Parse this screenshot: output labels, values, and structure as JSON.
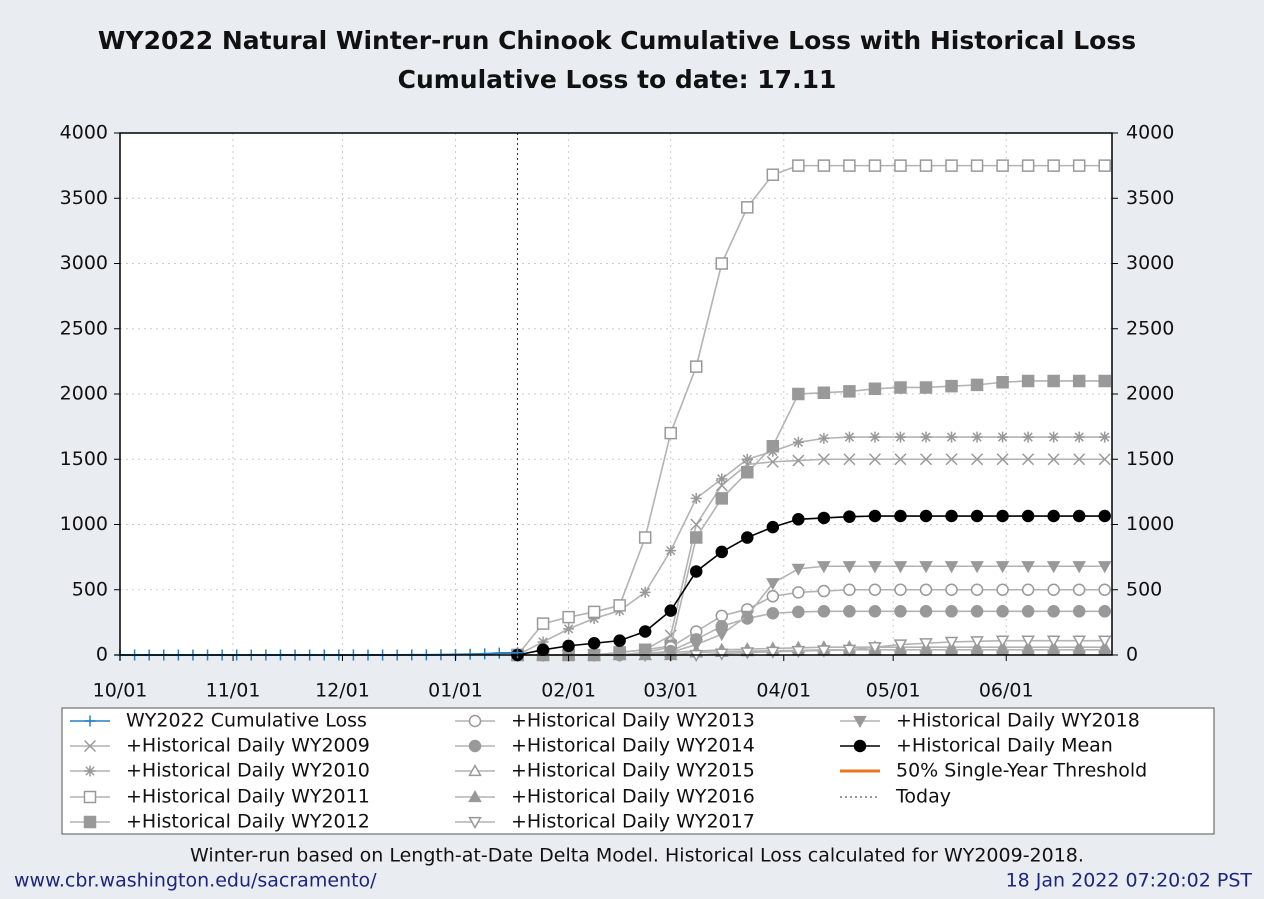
{
  "chart_data": {
    "type": "line",
    "title": "WY2022 Natural Winter-run Chinook Cumulative Loss with Historical Loss",
    "subtitle": "Cumulative Loss to date: 17.11",
    "xlim": [
      "10/01",
      "06/30"
    ],
    "xticks": [
      "10/01",
      "11/01",
      "12/01",
      "01/01",
      "02/01",
      "03/01",
      "04/01",
      "05/01",
      "06/01"
    ],
    "ylim": [
      0,
      4000
    ],
    "yticks": [
      0,
      500,
      1000,
      1500,
      2000,
      2500,
      3000,
      3500,
      4000
    ],
    "grid": true,
    "x": [
      "01/18",
      "01/25",
      "02/01",
      "02/08",
      "02/15",
      "02/22",
      "03/01",
      "03/08",
      "03/15",
      "03/22",
      "03/29",
      "04/05",
      "04/12",
      "04/19",
      "04/26",
      "05/03",
      "05/10",
      "05/17",
      "05/24",
      "05/31",
      "06/07",
      "06/14",
      "06/21",
      "06/28"
    ],
    "today_line": {
      "name": "Today",
      "x": "01/18"
    },
    "series": [
      {
        "name": "WY2022 Cumulative Loss",
        "color": "#2a7fc0",
        "marker": "plus",
        "x": [
          "10/01",
          "10/05",
          "10/09",
          "10/13",
          "10/17",
          "10/21",
          "10/25",
          "10/29",
          "11/02",
          "11/06",
          "11/10",
          "11/14",
          "11/18",
          "11/22",
          "11/26",
          "11/30",
          "12/04",
          "12/08",
          "12/12",
          "12/16",
          "12/20",
          "12/24",
          "12/28",
          "01/01",
          "01/05",
          "01/09",
          "01/13",
          "01/18"
        ],
        "values": [
          0,
          0,
          0,
          0,
          0,
          0,
          0,
          0,
          0,
          0,
          0,
          0,
          0,
          0,
          0,
          0,
          0,
          0,
          0,
          0,
          0.5,
          1,
          2,
          4,
          6,
          9,
          14,
          17.11
        ]
      },
      {
        "name": "+Historical Daily WY2009",
        "color": "#999999",
        "marker": "x",
        "values": [
          0,
          0,
          0,
          0,
          20,
          40,
          150,
          1000,
          1300,
          1460,
          1480,
          1490,
          1500,
          1500,
          1500,
          1500,
          1500,
          1500,
          1500,
          1500,
          1500,
          1500,
          1500,
          1500
        ]
      },
      {
        "name": "+Historical Daily WY2010",
        "color": "#999999",
        "marker": "asterisk",
        "values": [
          0,
          100,
          200,
          280,
          340,
          480,
          800,
          1200,
          1350,
          1500,
          1560,
          1630,
          1660,
          1670,
          1670,
          1670,
          1670,
          1670,
          1670,
          1670,
          1670,
          1670,
          1670,
          1670
        ]
      },
      {
        "name": "+Historical Daily WY2011",
        "color": "#999999",
        "marker": "square-open",
        "values": [
          0,
          240,
          290,
          330,
          380,
          900,
          1700,
          2210,
          3000,
          3430,
          3680,
          3750,
          3750,
          3750,
          3750,
          3750,
          3750,
          3750,
          3750,
          3750,
          3750,
          3750,
          3750,
          3750
        ]
      },
      {
        "name": "+Historical Daily WY2012",
        "color": "#999999",
        "marker": "square",
        "values": [
          0,
          0,
          0,
          0,
          20,
          40,
          70,
          900,
          1200,
          1400,
          1600,
          2000,
          2010,
          2020,
          2040,
          2050,
          2050,
          2060,
          2070,
          2090,
          2100,
          2100,
          2100,
          2100
        ]
      },
      {
        "name": "+Historical Daily WY2013",
        "color": "#999999",
        "marker": "circle-open",
        "values": [
          0,
          0,
          0,
          0,
          0,
          20,
          60,
          180,
          300,
          350,
          450,
          480,
          490,
          500,
          500,
          500,
          500,
          500,
          500,
          500,
          500,
          500,
          500,
          500
        ]
      },
      {
        "name": "+Historical Daily WY2014",
        "color": "#999999",
        "marker": "circle",
        "values": [
          0,
          0,
          0,
          0,
          0,
          10,
          30,
          120,
          220,
          280,
          320,
          330,
          335,
          335,
          335,
          335,
          335,
          335,
          335,
          335,
          335,
          335,
          335,
          335
        ]
      },
      {
        "name": "+Historical Daily WY2015",
        "color": "#999999",
        "marker": "triangle-open",
        "values": [
          0,
          0,
          0,
          0,
          0,
          0,
          20,
          30,
          40,
          45,
          50,
          55,
          60,
          60,
          60,
          60,
          60,
          60,
          60,
          60,
          60,
          60,
          60,
          60
        ]
      },
      {
        "name": "+Historical Daily WY2016",
        "color": "#999999",
        "marker": "triangle",
        "values": [
          0,
          0,
          0,
          0,
          0,
          0,
          0,
          20,
          25,
          30,
          32,
          35,
          40,
          40,
          40,
          40,
          40,
          40,
          40,
          40,
          40,
          40,
          40,
          40
        ]
      },
      {
        "name": "+Historical Daily WY2017",
        "color": "#999999",
        "marker": "triangle-down-open",
        "values": [
          0,
          0,
          0,
          0,
          0,
          0,
          0,
          0,
          10,
          20,
          25,
          30,
          35,
          40,
          60,
          80,
          90,
          100,
          105,
          110,
          110,
          110,
          110,
          110
        ]
      },
      {
        "name": "+Historical Daily WY2018",
        "color": "#999999",
        "marker": "triangle-down",
        "values": [
          0,
          0,
          0,
          0,
          0,
          0,
          20,
          80,
          160,
          300,
          550,
          660,
          680,
          680,
          680,
          680,
          680,
          680,
          680,
          680,
          680,
          680,
          680,
          680
        ]
      },
      {
        "name": "+Historical Daily Mean",
        "color": "#000000",
        "marker": "circle",
        "values": [
          0,
          40,
          70,
          90,
          110,
          180,
          340,
          640,
          790,
          900,
          980,
          1040,
          1050,
          1060,
          1065,
          1065,
          1065,
          1065,
          1065,
          1065,
          1065,
          1065,
          1065,
          1065
        ]
      },
      {
        "name": "50% Single-Year Threshold",
        "color": "#e87722"
      }
    ]
  },
  "footer_note": "Winter-run based on Length-at-Date Delta Model. Historical Loss calculated for WY2009-2018.",
  "source_url": "www.cbr.washington.edu/sacramento/",
  "timestamp": "18 Jan 2022 07:20:02 PST"
}
